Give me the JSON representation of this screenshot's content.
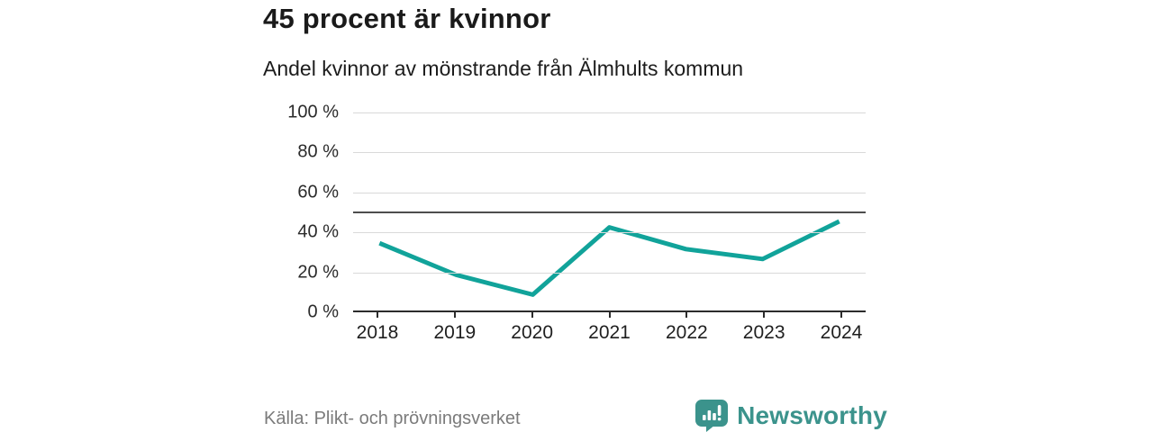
{
  "chart_data": {
    "type": "line",
    "title": "45 procent är kvinnor",
    "subtitle": "Andel kvinnor av mönstrande från Älmhults kommun",
    "categories": [
      "2018",
      "2019",
      "2020",
      "2021",
      "2022",
      "2023",
      "2024"
    ],
    "series": [
      {
        "name": "Andel kvinnor (%)",
        "values": [
          34,
          18,
          8,
          42,
          31,
          26,
          45
        ]
      }
    ],
    "ylim": [
      0,
      100
    ],
    "yticks": [
      0,
      20,
      40,
      60,
      80,
      100
    ],
    "ytick_suffix": " %",
    "ytick_labels": [
      "0 %",
      "20 %",
      "40 %",
      "60 %",
      "80 %",
      "100 %"
    ],
    "reference_line": 50,
    "grid": "horizontal",
    "legend": "none",
    "line_color": "#11a39a",
    "reference_line_color": "#4d4d4d",
    "gridline_color": "#d9d9d9",
    "axis_color": "#2b2b2b"
  },
  "footer": {
    "source": "Källa: Plikt- och prövningsverket",
    "brand": "Newsworthy",
    "brand_color": "#3b938c"
  }
}
